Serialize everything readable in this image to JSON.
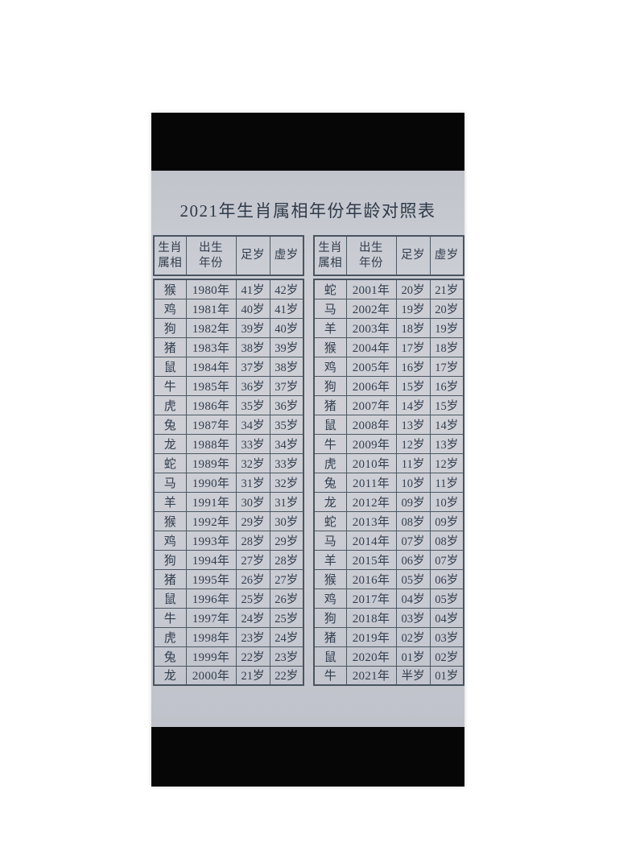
{
  "photo": {
    "title": "2021年生肖属相年份年龄对照表"
  },
  "colors": {
    "paper": "#c9cbd3",
    "letterbox": "#060606",
    "ink": "#323e4d"
  },
  "tables": [
    {
      "headers": [
        [
          "生肖",
          "属相"
        ],
        [
          "出生",
          "年份"
        ],
        [
          "足岁"
        ],
        [
          "虚岁"
        ]
      ],
      "rows": [
        [
          "猴",
          "1980年",
          "41岁",
          "42岁"
        ],
        [
          "鸡",
          "1981年",
          "40岁",
          "41岁"
        ],
        [
          "狗",
          "1982年",
          "39岁",
          "40岁"
        ],
        [
          "猪",
          "1983年",
          "38岁",
          "39岁"
        ],
        [
          "鼠",
          "1984年",
          "37岁",
          "38岁"
        ],
        [
          "牛",
          "1985年",
          "36岁",
          "37岁"
        ],
        [
          "虎",
          "1986年",
          "35岁",
          "36岁"
        ],
        [
          "兔",
          "1987年",
          "34岁",
          "35岁"
        ],
        [
          "龙",
          "1988年",
          "33岁",
          "34岁"
        ],
        [
          "蛇",
          "1989年",
          "32岁",
          "33岁"
        ],
        [
          "马",
          "1990年",
          "31岁",
          "32岁"
        ],
        [
          "羊",
          "1991年",
          "30岁",
          "31岁"
        ],
        [
          "猴",
          "1992年",
          "29岁",
          "30岁"
        ],
        [
          "鸡",
          "1993年",
          "28岁",
          "29岁"
        ],
        [
          "狗",
          "1994年",
          "27岁",
          "28岁"
        ],
        [
          "猪",
          "1995年",
          "26岁",
          "27岁"
        ],
        [
          "鼠",
          "1996年",
          "25岁",
          "26岁"
        ],
        [
          "牛",
          "1997年",
          "24岁",
          "25岁"
        ],
        [
          "虎",
          "1998年",
          "23岁",
          "24岁"
        ],
        [
          "兔",
          "1999年",
          "22岁",
          "23岁"
        ],
        [
          "龙",
          "2000年",
          "21岁",
          "22岁"
        ]
      ]
    },
    {
      "headers": [
        [
          "生肖",
          "属相"
        ],
        [
          "出生",
          "年份"
        ],
        [
          "足岁"
        ],
        [
          "虚岁"
        ]
      ],
      "rows": [
        [
          "蛇",
          "2001年",
          "20岁",
          "21岁"
        ],
        [
          "马",
          "2002年",
          "19岁",
          "20岁"
        ],
        [
          "羊",
          "2003年",
          "18岁",
          "19岁"
        ],
        [
          "猴",
          "2004年",
          "17岁",
          "18岁"
        ],
        [
          "鸡",
          "2005年",
          "16岁",
          "17岁"
        ],
        [
          "狗",
          "2006年",
          "15岁",
          "16岁"
        ],
        [
          "猪",
          "2007年",
          "14岁",
          "15岁"
        ],
        [
          "鼠",
          "2008年",
          "13岁",
          "14岁"
        ],
        [
          "牛",
          "2009年",
          "12岁",
          "13岁"
        ],
        [
          "虎",
          "2010年",
          "11岁",
          "12岁"
        ],
        [
          "兔",
          "2011年",
          "10岁",
          "11岁"
        ],
        [
          "龙",
          "2012年",
          "09岁",
          "10岁"
        ],
        [
          "蛇",
          "2013年",
          "08岁",
          "09岁"
        ],
        [
          "马",
          "2014年",
          "07岁",
          "08岁"
        ],
        [
          "羊",
          "2015年",
          "06岁",
          "07岁"
        ],
        [
          "猴",
          "2016年",
          "05岁",
          "06岁"
        ],
        [
          "鸡",
          "2017年",
          "04岁",
          "05岁"
        ],
        [
          "狗",
          "2018年",
          "03岁",
          "04岁"
        ],
        [
          "猪",
          "2019年",
          "02岁",
          "03岁"
        ],
        [
          "鼠",
          "2020年",
          "01岁",
          "02岁"
        ],
        [
          "牛",
          "2021年",
          "半岁",
          "01岁"
        ]
      ]
    }
  ]
}
